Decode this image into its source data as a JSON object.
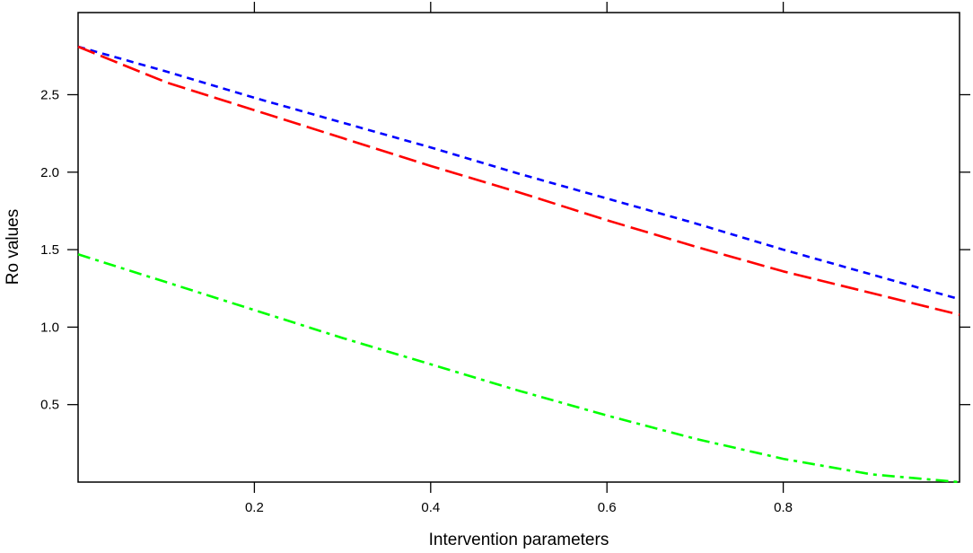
{
  "chart_data": {
    "type": "line",
    "title": "",
    "xlabel": "Intervention parameters",
    "ylabel": "Ro values",
    "xlim": [
      0,
      1
    ],
    "ylim": [
      0,
      3.03
    ],
    "x_ticks": [
      0.2,
      0.4,
      0.6,
      0.8
    ],
    "x_tick_labels": [
      "0.2",
      "0.4",
      "0.6",
      "0.8"
    ],
    "y_ticks": [
      0.5,
      1.0,
      1.5,
      2.0,
      2.5
    ],
    "y_tick_labels": [
      "0.5",
      "1.0",
      "1.5",
      "2.0",
      "2.5"
    ],
    "grid": false,
    "legend": "none",
    "series": [
      {
        "color": "#0000ff",
        "dash": "short-dash",
        "x": [
          0,
          0.1,
          0.2,
          0.3,
          0.4,
          0.5,
          0.6,
          0.7,
          0.8,
          0.9,
          1.0
        ],
        "y": [
          2.81,
          2.65,
          2.48,
          2.32,
          2.16,
          1.99,
          1.83,
          1.67,
          1.5,
          1.34,
          1.18
        ]
      },
      {
        "color": "#ff0000",
        "dash": "long-dash",
        "x": [
          0,
          0.1,
          0.2,
          0.3,
          0.4,
          0.5,
          0.6,
          0.7,
          0.8,
          0.9,
          1.0
        ],
        "y": [
          2.81,
          2.58,
          2.4,
          2.22,
          2.04,
          1.87,
          1.69,
          1.52,
          1.36,
          1.22,
          1.08
        ]
      },
      {
        "color": "#00ff00",
        "dash": "dash-dot",
        "x": [
          0,
          0.1,
          0.2,
          0.3,
          0.4,
          0.5,
          0.6,
          0.7,
          0.8,
          0.9,
          1.0
        ],
        "y": [
          1.47,
          1.29,
          1.11,
          0.93,
          0.76,
          0.59,
          0.43,
          0.28,
          0.15,
          0.05,
          0.0
        ]
      }
    ]
  }
}
